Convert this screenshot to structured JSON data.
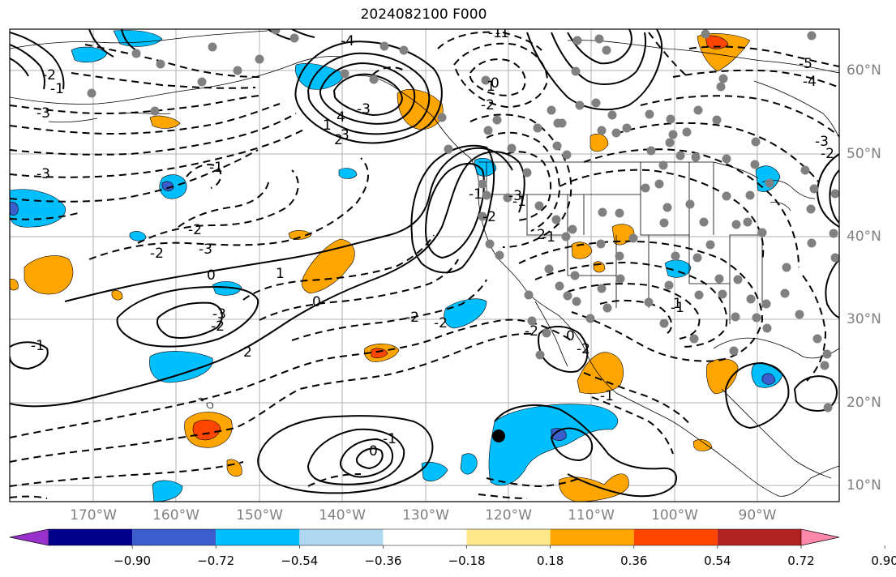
{
  "title": "2024082100 F000",
  "longitude_labels": [
    "170°W",
    "160°W",
    "150°W",
    "140°W",
    "130°W",
    "120°W",
    "110°W",
    "100°W",
    "90°W"
  ],
  "latitude_labels": [
    "60°N",
    "50°N",
    "40°N",
    "30°N",
    "20°N",
    "10°N"
  ],
  "colorbar": {
    "tick_labels": [
      "−0.90",
      "−0.72",
      "−0.54",
      "−0.36",
      "−0.18",
      "0.18",
      "0.36",
      "0.54",
      "0.72",
      "0.90"
    ],
    "colors": [
      "#9932cc",
      "#00008b",
      "#3a5fcd",
      "#00bfff",
      "#add8f0",
      "#ffffff",
      "#ffe88a",
      "#ffa500",
      "#ff4500",
      "#b22222",
      "#ff88aa"
    ]
  },
  "contour_labels": [
    "-1",
    "-1",
    "-2",
    "-3",
    "-1",
    "-5",
    "-4",
    "-3",
    "-2",
    "-1",
    "-3",
    "-2",
    "-3",
    "-2",
    "-2",
    "0",
    "1",
    "0",
    "-1",
    "-2",
    "-3",
    "2",
    "-2",
    "-1",
    "0",
    "1",
    "2",
    "3",
    "4",
    "-4",
    "-3",
    "0",
    "1",
    "-2",
    "-1",
    "-2",
    "-3",
    "-1",
    "0",
    "-1",
    "2",
    "-2",
    "-1",
    "-2",
    "-1",
    "1"
  ],
  "colors": {
    "station_marker": "#808080",
    "grid": "#b0b0b0",
    "coast": "#000000"
  }
}
